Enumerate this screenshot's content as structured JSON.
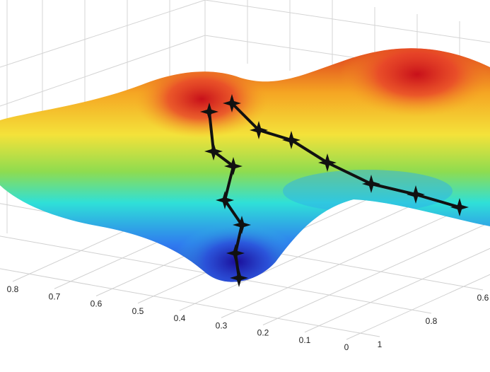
{
  "chart_data": {
    "type": "surface",
    "xticks": [
      0.8,
      0.7,
      0.6,
      0.5,
      0.4,
      0.3,
      0.2,
      0.1,
      0
    ],
    "xlim": [
      0.8,
      0
    ],
    "yticks": [
      1,
      0.8,
      0.6
    ],
    "ylim": [
      1,
      0.6
    ],
    "grid": true
  }
}
